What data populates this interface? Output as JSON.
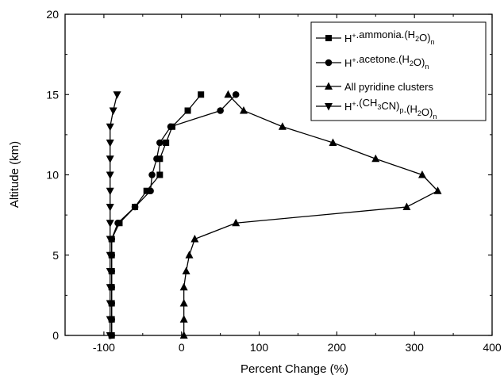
{
  "chart_data": {
    "type": "line",
    "xlabel": "Percent Change (%)",
    "ylabel": "Altitude (km)",
    "xlim": [
      -150,
      400
    ],
    "ylim": [
      0,
      20
    ],
    "xticks": [
      -100,
      0,
      100,
      200,
      300,
      400
    ],
    "yticks": [
      0,
      5,
      10,
      15,
      20
    ],
    "legend_position": "top-right",
    "series": [
      {
        "key": "ammonia",
        "legend": [
          {
            "t": "H"
          },
          {
            "t": "+",
            "sup": true
          },
          {
            "t": ".ammonia.(H"
          },
          {
            "t": "2",
            "sub": true
          },
          {
            "t": "O)"
          },
          {
            "t": "n",
            "sub": true
          }
        ],
        "marker": "square",
        "points": [
          [
            -90,
            0
          ],
          [
            -90,
            1
          ],
          [
            -90,
            2
          ],
          [
            -90,
            3
          ],
          [
            -90,
            4
          ],
          [
            -90,
            5
          ],
          [
            -90,
            6
          ],
          [
            -80,
            7
          ],
          [
            -60,
            8
          ],
          [
            -45,
            9
          ],
          [
            -28,
            10
          ],
          [
            -28,
            11
          ],
          [
            -20,
            12
          ],
          [
            -12,
            13
          ],
          [
            8,
            14
          ],
          [
            25,
            15
          ]
        ]
      },
      {
        "key": "acetone",
        "legend": [
          {
            "t": "H"
          },
          {
            "t": "+",
            "sup": true
          },
          {
            "t": ".acetone.(H"
          },
          {
            "t": "2",
            "sub": true
          },
          {
            "t": "O)"
          },
          {
            "t": "n",
            "sub": true
          }
        ],
        "marker": "circle",
        "points": [
          [
            -90,
            0
          ],
          [
            -90,
            1
          ],
          [
            -90,
            2
          ],
          [
            -90,
            3
          ],
          [
            -90,
            4
          ],
          [
            -90,
            5
          ],
          [
            -90,
            6
          ],
          [
            -82,
            7
          ],
          [
            -60,
            8
          ],
          [
            -40,
            9
          ],
          [
            -38,
            10
          ],
          [
            -32,
            11
          ],
          [
            -28,
            12
          ],
          [
            -14,
            13
          ],
          [
            50,
            14
          ],
          [
            70,
            15
          ]
        ]
      },
      {
        "key": "pyridine",
        "legend": [
          {
            "t": "All pyridine clusters"
          }
        ],
        "marker": "triangle-up",
        "points": [
          [
            3,
            0
          ],
          [
            3,
            1
          ],
          [
            3,
            2
          ],
          [
            3,
            3
          ],
          [
            6,
            4
          ],
          [
            10,
            5
          ],
          [
            17,
            6
          ],
          [
            70,
            7
          ],
          [
            290,
            8
          ],
          [
            330,
            9
          ],
          [
            310,
            10
          ],
          [
            250,
            11
          ],
          [
            195,
            12
          ],
          [
            130,
            13
          ],
          [
            80,
            14
          ],
          [
            60,
            15
          ]
        ]
      },
      {
        "key": "acetonitrile",
        "legend": [
          {
            "t": "H"
          },
          {
            "t": "+",
            "sup": true
          },
          {
            "t": ".(CH"
          },
          {
            "t": "3",
            "sub": true
          },
          {
            "t": "CN)"
          },
          {
            "t": "p",
            "sub": true
          },
          {
            "t": ".(H"
          },
          {
            "t": "2",
            "sub": true
          },
          {
            "t": "O)"
          },
          {
            "t": "n",
            "sub": true
          }
        ],
        "marker": "triangle-down",
        "points": [
          [
            -92,
            0
          ],
          [
            -92,
            1
          ],
          [
            -92,
            2
          ],
          [
            -92,
            3
          ],
          [
            -92,
            4
          ],
          [
            -92,
            5
          ],
          [
            -92,
            6
          ],
          [
            -92,
            7
          ],
          [
            -92,
            8
          ],
          [
            -92,
            9
          ],
          [
            -92,
            10
          ],
          [
            -92,
            11
          ],
          [
            -92,
            12
          ],
          [
            -92,
            13
          ],
          [
            -88,
            14
          ],
          [
            -83,
            15
          ]
        ]
      }
    ]
  }
}
